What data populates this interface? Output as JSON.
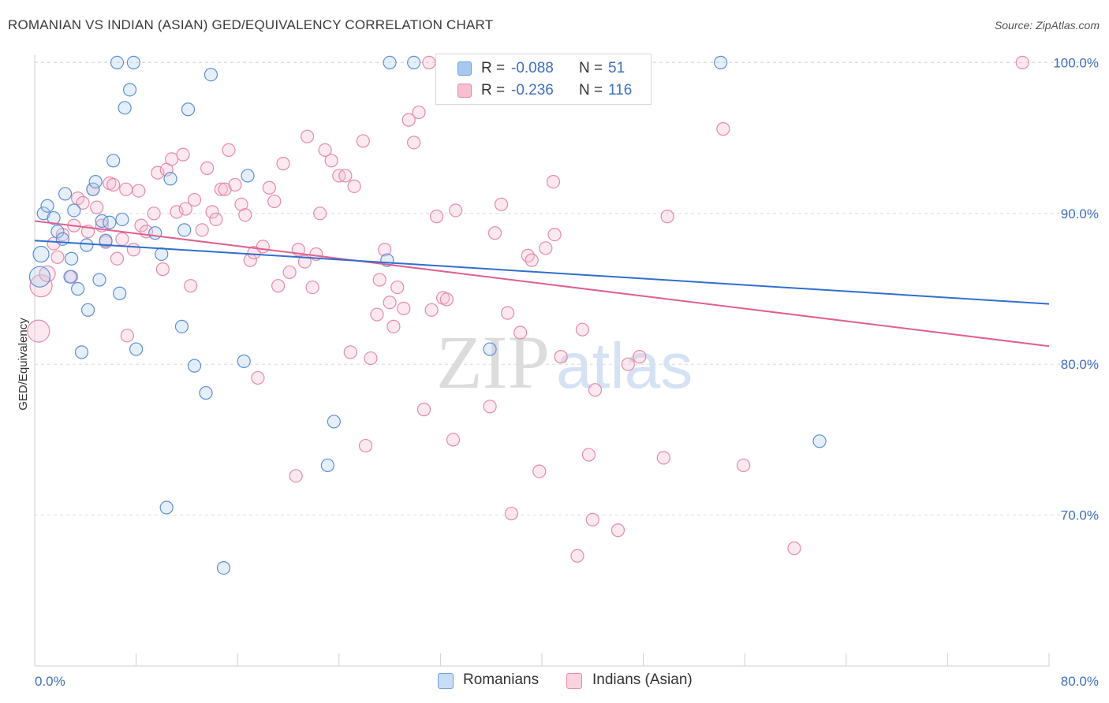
{
  "title": "ROMANIAN VS INDIAN (ASIAN) GED/EQUIVALENCY CORRELATION CHART",
  "source": "Source: ZipAtlas.com",
  "watermark": {
    "zip": "ZIP",
    "atlas": "atlas"
  },
  "legend": {
    "rows": [
      {
        "r_label": "R =",
        "r_value": "-0.088",
        "n_label": "N =",
        "n_value": "51",
        "color": "#a8c8f0",
        "border": "#6f9fdc"
      },
      {
        "r_label": "R =",
        "r_value": "-0.236",
        "n_label": "N =",
        "n_value": "116",
        "color": "#f7bfd0",
        "border": "#e68aa8"
      }
    ]
  },
  "bottom_legend": [
    {
      "label": "Romanians",
      "color": "#c7dcf6",
      "border": "#6f9fdc"
    },
    {
      "label": "Indians (Asian)",
      "color": "#fbd3df",
      "border": "#e68aa8"
    }
  ],
  "chart_data": {
    "type": "scatter",
    "xlabel": "",
    "ylabel": "GED/Equivalency",
    "xlim": [
      0,
      80
    ],
    "ylim": [
      60,
      102.5
    ],
    "x_tick_labels": [
      "0.0%",
      "80.0%"
    ],
    "y_ticks": [
      70,
      80,
      90,
      100
    ],
    "y_tick_labels": [
      "70.0%",
      "80.0%",
      "90.0%",
      "100.0%"
    ],
    "grid": "horizontal dashed",
    "colors": {
      "romanians": "#5b8fd6",
      "indians": "#e87fa3",
      "romanians_line": "#2f6fcf",
      "indians_line": "#e0608f"
    },
    "series": [
      {
        "name": "Romanians",
        "trend": {
          "x": [
            0,
            80
          ],
          "y": [
            88.2,
            84.0
          ]
        },
        "points": [
          [
            0.5,
            87.3,
            10
          ],
          [
            0.4,
            85.8,
            13
          ],
          [
            0.7,
            90.0,
            8
          ],
          [
            1.0,
            90.5,
            8
          ],
          [
            1.5,
            89.7,
            8
          ],
          [
            1.8,
            88.8,
            8
          ],
          [
            2.2,
            88.3,
            8
          ],
          [
            2.4,
            91.3,
            8
          ],
          [
            2.8,
            85.8,
            8
          ],
          [
            2.9,
            87.0,
            8
          ],
          [
            3.1,
            90.2,
            8
          ],
          [
            3.4,
            85.0,
            8
          ],
          [
            3.7,
            80.8,
            8
          ],
          [
            4.1,
            87.9,
            8
          ],
          [
            4.2,
            83.6,
            8
          ],
          [
            4.6,
            91.6,
            8
          ],
          [
            4.8,
            92.1,
            8
          ],
          [
            5.1,
            85.6,
            8
          ],
          [
            5.3,
            89.5,
            8
          ],
          [
            5.6,
            88.2,
            8
          ],
          [
            5.9,
            89.4,
            8
          ],
          [
            6.2,
            93.5,
            8
          ],
          [
            6.5,
            100.0,
            8
          ],
          [
            6.7,
            84.7,
            8
          ],
          [
            6.9,
            89.6,
            8
          ],
          [
            7.1,
            97.0,
            8
          ],
          [
            7.5,
            98.2,
            8
          ],
          [
            7.8,
            100.0,
            8
          ],
          [
            8.0,
            81.0,
            8
          ],
          [
            9.5,
            88.7,
            8
          ],
          [
            10.0,
            87.3,
            8
          ],
          [
            10.4,
            70.5,
            8
          ],
          [
            10.7,
            92.3,
            8
          ],
          [
            11.6,
            82.5,
            8
          ],
          [
            11.8,
            88.9,
            8
          ],
          [
            12.1,
            96.9,
            8
          ],
          [
            12.6,
            79.9,
            8
          ],
          [
            13.5,
            78.1,
            8
          ],
          [
            13.9,
            99.2,
            8
          ],
          [
            14.9,
            66.5,
            8
          ],
          [
            16.5,
            80.2,
            8
          ],
          [
            16.8,
            92.5,
            8
          ],
          [
            23.1,
            73.3,
            8
          ],
          [
            23.6,
            76.2,
            8
          ],
          [
            27.8,
            86.9,
            8
          ],
          [
            28.0,
            100.0,
            8
          ],
          [
            29.9,
            100.0,
            8
          ],
          [
            32.2,
            100.0,
            8
          ],
          [
            35.9,
            81.0,
            8
          ],
          [
            54.1,
            100.0,
            8
          ],
          [
            61.9,
            74.9,
            8
          ]
        ]
      },
      {
        "name": "Indians (Asian)",
        "trend": {
          "x": [
            0,
            80
          ],
          "y": [
            89.5,
            81.2
          ]
        },
        "points": [
          [
            0.3,
            82.2,
            14
          ],
          [
            0.5,
            85.2,
            14
          ],
          [
            1.0,
            86.0,
            10
          ],
          [
            1.5,
            88.0,
            8
          ],
          [
            1.8,
            87.1,
            8
          ],
          [
            2.2,
            88.6,
            8
          ],
          [
            2.9,
            85.8,
            8
          ],
          [
            3.1,
            89.2,
            8
          ],
          [
            3.4,
            91.0,
            8
          ],
          [
            3.8,
            90.7,
            8
          ],
          [
            4.2,
            88.8,
            8
          ],
          [
            4.6,
            91.6,
            8
          ],
          [
            4.9,
            90.4,
            8
          ],
          [
            5.3,
            89.2,
            8
          ],
          [
            5.6,
            88.1,
            8
          ],
          [
            5.9,
            92.0,
            8
          ],
          [
            6.2,
            91.9,
            8
          ],
          [
            6.5,
            87.0,
            8
          ],
          [
            6.9,
            88.3,
            8
          ],
          [
            7.2,
            91.6,
            8
          ],
          [
            7.3,
            81.9,
            8
          ],
          [
            7.8,
            87.6,
            8
          ],
          [
            8.2,
            91.5,
            8
          ],
          [
            8.4,
            89.2,
            8
          ],
          [
            8.8,
            88.8,
            8
          ],
          [
            9.4,
            90.0,
            8
          ],
          [
            9.7,
            92.7,
            8
          ],
          [
            10.1,
            86.3,
            8
          ],
          [
            10.4,
            92.9,
            8
          ],
          [
            10.8,
            93.6,
            8
          ],
          [
            11.2,
            90.1,
            8
          ],
          [
            11.7,
            93.9,
            8
          ],
          [
            11.9,
            90.3,
            8
          ],
          [
            12.3,
            85.2,
            8
          ],
          [
            12.6,
            90.9,
            8
          ],
          [
            13.2,
            88.9,
            8
          ],
          [
            13.6,
            93.0,
            8
          ],
          [
            14.0,
            90.1,
            8
          ],
          [
            14.3,
            89.6,
            8
          ],
          [
            14.7,
            91.6,
            8
          ],
          [
            15.0,
            91.6,
            8
          ],
          [
            15.3,
            94.2,
            8
          ],
          [
            15.8,
            91.9,
            8
          ],
          [
            16.3,
            90.6,
            8
          ],
          [
            16.6,
            89.9,
            8
          ],
          [
            17.0,
            86.9,
            8
          ],
          [
            17.3,
            87.4,
            8
          ],
          [
            17.6,
            79.1,
            8
          ],
          [
            18.0,
            87.8,
            8
          ],
          [
            18.5,
            91.7,
            8
          ],
          [
            18.9,
            90.8,
            8
          ],
          [
            19.2,
            85.2,
            8
          ],
          [
            19.6,
            93.3,
            8
          ],
          [
            20.1,
            86.1,
            8
          ],
          [
            20.6,
            72.6,
            8
          ],
          [
            20.8,
            87.6,
            8
          ],
          [
            21.3,
            86.8,
            8
          ],
          [
            21.5,
            95.1,
            8
          ],
          [
            21.9,
            85.1,
            8
          ],
          [
            22.2,
            87.3,
            8
          ],
          [
            22.5,
            90.0,
            8
          ],
          [
            22.9,
            94.2,
            8
          ],
          [
            23.4,
            93.5,
            8
          ],
          [
            24.0,
            92.5,
            8
          ],
          [
            24.5,
            92.5,
            8
          ],
          [
            24.9,
            80.8,
            8
          ],
          [
            25.2,
            91.8,
            8
          ],
          [
            25.9,
            94.8,
            8
          ],
          [
            26.1,
            74.6,
            8
          ],
          [
            26.5,
            80.4,
            8
          ],
          [
            27.0,
            83.3,
            8
          ],
          [
            27.2,
            85.6,
            8
          ],
          [
            27.6,
            87.6,
            8
          ],
          [
            28.0,
            84.1,
            8
          ],
          [
            28.3,
            82.5,
            8
          ],
          [
            28.6,
            85.1,
            8
          ],
          [
            29.1,
            83.7,
            8
          ],
          [
            29.5,
            96.2,
            8
          ],
          [
            29.9,
            94.7,
            8
          ],
          [
            30.3,
            96.7,
            8
          ],
          [
            30.7,
            77.0,
            8
          ],
          [
            31.1,
            100.0,
            8
          ],
          [
            31.3,
            83.6,
            8
          ],
          [
            31.7,
            89.8,
            8
          ],
          [
            32.2,
            84.4,
            8
          ],
          [
            32.5,
            84.3,
            8
          ],
          [
            33.0,
            75.0,
            8
          ],
          [
            33.2,
            90.2,
            8
          ],
          [
            35.9,
            77.2,
            8
          ],
          [
            36.3,
            88.7,
            8
          ],
          [
            36.8,
            90.6,
            8
          ],
          [
            37.3,
            83.4,
            8
          ],
          [
            37.6,
            70.1,
            8
          ],
          [
            38.3,
            82.1,
            8
          ],
          [
            38.9,
            87.2,
            8
          ],
          [
            39.2,
            86.9,
            8
          ],
          [
            39.8,
            72.9,
            8
          ],
          [
            40.3,
            87.7,
            8
          ],
          [
            40.9,
            92.1,
            8
          ],
          [
            41.0,
            88.6,
            8
          ],
          [
            41.5,
            80.5,
            8
          ],
          [
            42.8,
            67.3,
            8
          ],
          [
            43.2,
            82.3,
            8
          ],
          [
            43.7,
            74.0,
            8
          ],
          [
            44.0,
            69.7,
            8
          ],
          [
            44.2,
            78.3,
            8
          ],
          [
            46.0,
            69.0,
            8
          ],
          [
            46.8,
            80.0,
            8
          ],
          [
            47.7,
            80.5,
            8
          ],
          [
            47.6,
            100.0,
            8
          ],
          [
            49.6,
            73.8,
            8
          ],
          [
            49.9,
            89.8,
            8
          ],
          [
            54.3,
            95.6,
            8
          ],
          [
            55.9,
            73.3,
            8
          ],
          [
            59.9,
            67.8,
            8
          ],
          [
            77.9,
            100.0,
            8
          ]
        ]
      }
    ]
  }
}
